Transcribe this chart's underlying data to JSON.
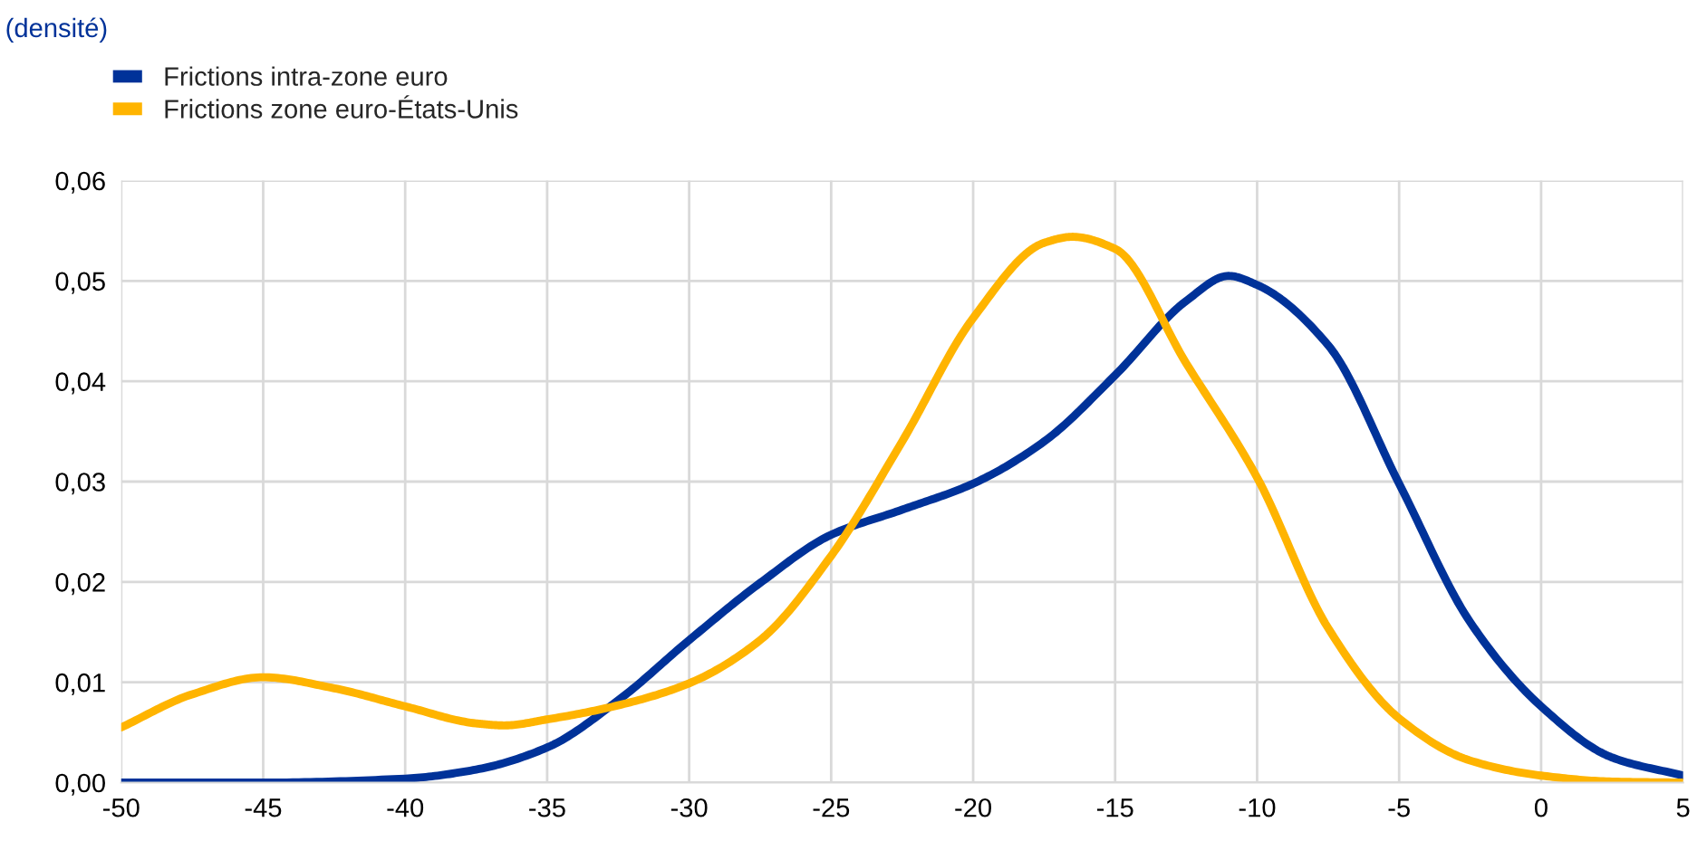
{
  "chart_data": {
    "type": "line",
    "ylabel": "(densité)",
    "legend": "top left",
    "grid": true,
    "marker": "none",
    "line_style": "solid",
    "xlim": [
      -50,
      5
    ],
    "xticks": [
      -50,
      -45,
      -40,
      -35,
      -30,
      -25,
      -20,
      -15,
      -10,
      -5,
      0,
      5
    ],
    "ylim": [
      0,
      0.06
    ],
    "yticks": [
      {
        "value": 0,
        "label": "0,00"
      },
      {
        "value": 0.01,
        "label": "0,01"
      },
      {
        "value": 0.02,
        "label": "0,02"
      },
      {
        "value": 0.03,
        "label": "0,03"
      },
      {
        "value": 0.04,
        "label": "0,04"
      },
      {
        "value": 0.05,
        "label": "0,05"
      },
      {
        "value": 0.06,
        "label": "0,06"
      }
    ],
    "series": [
      {
        "name": "Frictions intra-zone euro",
        "color": "#003299",
        "x": [
          -50,
          -45,
          -40,
          -37.5,
          -35,
          -32.5,
          -30,
          -27.5,
          -25,
          -22.5,
          -20,
          -17.5,
          -15,
          -12.5,
          -11,
          -10,
          -7.5,
          -5,
          -2.5,
          0,
          2.5,
          5
        ],
        "values": [
          0,
          0,
          0.0004,
          0.0013,
          0.0035,
          0.0082,
          0.0142,
          0.0199,
          0.0247,
          0.0272,
          0.0298,
          0.034,
          0.0406,
          0.048,
          0.0505,
          0.0496,
          0.0436,
          0.0298,
          0.016,
          0.0076,
          0.0025,
          0.0007
        ]
      },
      {
        "name": "Frictions zone euro-États-Unis",
        "color": "#ffb400",
        "x": [
          -50,
          -47.5,
          -45,
          -42.5,
          -40,
          -37.5,
          -36.5,
          -35,
          -32.5,
          -30,
          -27.5,
          -25,
          -22.5,
          -20,
          -17.5,
          -16.5,
          -15,
          -12.5,
          -10,
          -7.5,
          -5,
          -2.5,
          0,
          2.5,
          5
        ],
        "values": [
          0.0055,
          0.0088,
          0.0105,
          0.0094,
          0.0076,
          0.0059,
          0.0057,
          0.0063,
          0.0077,
          0.0099,
          0.0142,
          0.0226,
          0.034,
          0.0463,
          0.0538,
          0.0544,
          0.0532,
          0.0418,
          0.0304,
          0.0154,
          0.0064,
          0.0022,
          0.0007,
          0.0001,
          0
        ]
      }
    ]
  }
}
